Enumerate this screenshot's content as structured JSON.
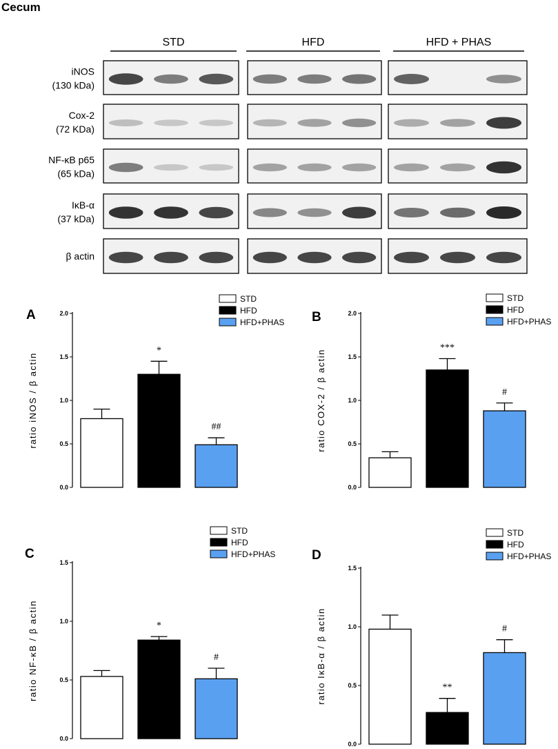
{
  "figure_title": "Cecum",
  "blot": {
    "groups": [
      "STD",
      "HFD",
      "HFD + PHAS"
    ],
    "rows": [
      {
        "label1": "iNOS",
        "label2": "(130 kDa)",
        "bands": [
          [
            0.85,
            0.55,
            0.75
          ],
          [
            0.55,
            0.55,
            0.6
          ],
          [
            0.7,
            0.0,
            0.45
          ]
        ]
      },
      {
        "label1": "Cox-2",
        "label2": "(72 KDa)",
        "bands": [
          [
            0.2,
            0.15,
            0.15
          ],
          [
            0.25,
            0.35,
            0.45
          ],
          [
            0.3,
            0.35,
            0.9
          ]
        ]
      },
      {
        "label1": "NF-κB p65",
        "label2": "(65 kDa)",
        "bands": [
          [
            0.55,
            0.15,
            0.15
          ],
          [
            0.35,
            0.35,
            0.35
          ],
          [
            0.35,
            0.35,
            0.95
          ]
        ]
      },
      {
        "label1": "IκB-α",
        "label2": "(37 kDa)",
        "bands": [
          [
            0.95,
            0.95,
            0.85
          ],
          [
            0.5,
            0.45,
            0.9
          ],
          [
            0.6,
            0.65,
            1.0
          ]
        ]
      },
      {
        "label1": "β actin",
        "label2": "",
        "bands": [
          [
            0.85,
            0.85,
            0.85
          ],
          [
            0.85,
            0.85,
            0.85
          ],
          [
            0.85,
            0.85,
            0.85
          ]
        ]
      }
    ]
  },
  "colors": {
    "std": "#ffffff",
    "hfd": "#000000",
    "phas": "#5aa0f0"
  },
  "chart_data": [
    {
      "panel": "A",
      "type": "bar",
      "categories": [
        "STD",
        "HFD",
        "HFD+PHAS"
      ],
      "values": [
        0.79,
        1.3,
        0.49
      ],
      "errors": [
        0.11,
        0.15,
        0.08
      ],
      "significance": [
        "",
        "*",
        "##"
      ],
      "ylabel": "ratio iNOS / β actin",
      "ylim": [
        0,
        2.0
      ],
      "yticks": [
        "0.0",
        "0.5",
        "1.0",
        "1.5",
        "2.0"
      ],
      "legend": [
        "STD",
        "HFD",
        "HFD+PHAS"
      ]
    },
    {
      "panel": "B",
      "type": "bar",
      "categories": [
        "STD",
        "HFD",
        "HFD+PHAS"
      ],
      "values": [
        0.34,
        1.35,
        0.88
      ],
      "errors": [
        0.07,
        0.13,
        0.09
      ],
      "significance": [
        "",
        "***",
        "#"
      ],
      "ylabel": "ratio COX-2 / β actin",
      "ylim": [
        0,
        2.0
      ],
      "yticks": [
        "0.0",
        "0.5",
        "1.0",
        "1.5",
        "2.0"
      ],
      "legend": [
        "STD",
        "HFD",
        "HFD+PHAS"
      ]
    },
    {
      "panel": "C",
      "type": "bar",
      "categories": [
        "STD",
        "HFD",
        "HFD+PHAS"
      ],
      "values": [
        0.53,
        0.84,
        0.51
      ],
      "errors": [
        0.05,
        0.03,
        0.09
      ],
      "significance": [
        "",
        "*",
        "#"
      ],
      "ylabel": "ratio NF-κB / β actin",
      "ylim": [
        0,
        1.5
      ],
      "yticks": [
        "0.0",
        "0.5",
        "1.0",
        "1.5"
      ],
      "legend": [
        "STD",
        "HFD",
        "HFD+PHAS"
      ]
    },
    {
      "panel": "D",
      "type": "bar",
      "categories": [
        "STD",
        "HFD",
        "HFD+PHAS"
      ],
      "values": [
        0.98,
        0.27,
        0.78
      ],
      "errors": [
        0.12,
        0.12,
        0.11
      ],
      "significance": [
        "",
        "**",
        "#"
      ],
      "ylabel": "ratio IκB-α / β actin",
      "ylim": [
        0,
        1.5
      ],
      "yticks": [
        "0.0",
        "0.5",
        "1.0",
        "1.5"
      ],
      "legend": [
        "STD",
        "HFD",
        "HFD+PHAS"
      ]
    }
  ]
}
